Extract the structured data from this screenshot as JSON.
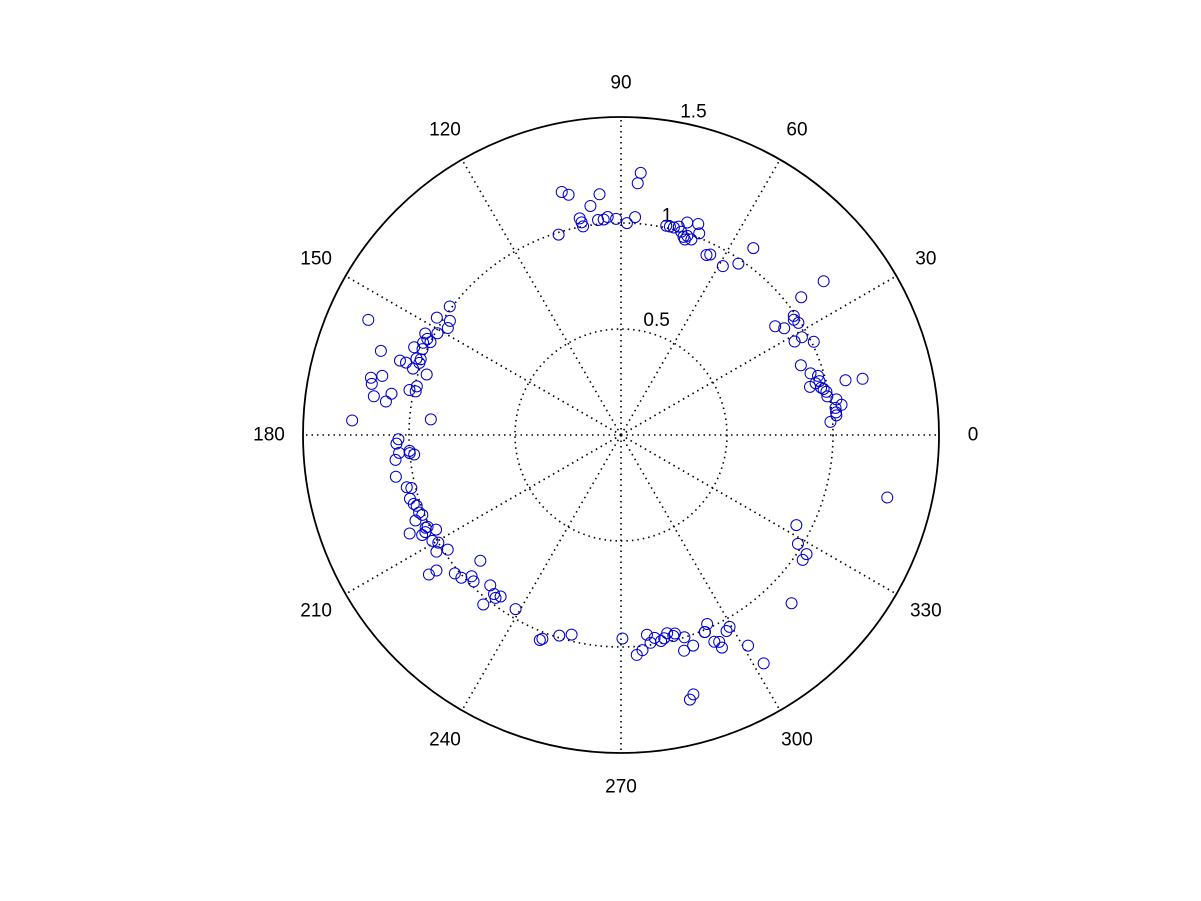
{
  "chart_data": {
    "type": "scatter",
    "coordinate_system": "polar",
    "angle_unit": "degrees",
    "rlim": [
      0,
      1.5
    ],
    "radial_ticks": [
      0.5,
      1,
      1.5
    ],
    "angle_ticks": [
      0,
      30,
      60,
      90,
      120,
      150,
      180,
      210,
      240,
      270,
      300,
      330
    ],
    "grid": true,
    "marker": "open-circle",
    "marker_color": "#0000cc",
    "series": [
      {
        "points": [
          [
            86.3,
            1.03
          ],
          [
            88.4,
            1.0
          ],
          [
            91.3,
            1.02
          ],
          [
            93.5,
            1.03
          ],
          [
            94.6,
            1.02
          ],
          [
            96.1,
            1.02
          ],
          [
            95.1,
            1.14
          ],
          [
            100.3,
            1.0
          ],
          [
            100.5,
            1.02
          ],
          [
            100.8,
            1.04
          ],
          [
            103.7,
            1.18
          ],
          [
            102.3,
            1.16
          ],
          [
            107.3,
            0.99
          ],
          [
            97.6,
            1.09
          ],
          [
            86.2,
            1.19
          ],
          [
            85.7,
            1.24
          ],
          [
            77.8,
            1.01
          ],
          [
            76.8,
            1.01
          ],
          [
            75.7,
            1.01
          ],
          [
            74.5,
            1.02
          ],
          [
            73.5,
            1.0
          ],
          [
            72.5,
            0.98
          ],
          [
            71.9,
            0.97
          ],
          [
            71.6,
            0.99
          ],
          [
            70.2,
            0.98
          ],
          [
            69.9,
            1.06
          ],
          [
            68.8,
            1.02
          ],
          [
            72.7,
            1.05
          ],
          [
            64.6,
            0.94
          ],
          [
            63.7,
            0.95
          ],
          [
            58.9,
            0.93
          ],
          [
            55.6,
            0.98
          ],
          [
            54.7,
            1.08
          ],
          [
            37.2,
            1.2
          ],
          [
            35.2,
            0.89
          ],
          [
            37.4,
            1.07
          ],
          [
            33.7,
            0.98
          ],
          [
            34.6,
            0.99
          ],
          [
            32.3,
            0.99
          ],
          [
            33.2,
            0.92
          ],
          [
            28.3,
            0.93
          ],
          [
            28.4,
            0.97
          ],
          [
            25.8,
            1.01
          ],
          [
            21.2,
            0.91
          ],
          [
            18.0,
            0.94
          ],
          [
            16.7,
            0.97
          ],
          [
            15.2,
            0.97
          ],
          [
            14.3,
            0.92
          ],
          [
            14.9,
            0.95
          ],
          [
            13.3,
            0.97
          ],
          [
            12.8,
            0.98
          ],
          [
            11.9,
            0.99
          ],
          [
            10.6,
            0.99
          ],
          [
            9.4,
            1.03
          ],
          [
            7.8,
            1.05
          ],
          [
            6.0,
            1.02
          ],
          [
            7.2,
            1.02
          ],
          [
            5.2,
            1.02
          ],
          [
            3.6,
            0.99
          ],
          [
            13.7,
            1.09
          ],
          [
            13.1,
            1.17
          ],
          [
            -13.2,
            1.29
          ],
          [
            -27.2,
            0.93
          ],
          [
            -31.6,
            0.98
          ],
          [
            -34.5,
            1.04
          ],
          [
            -32.7,
            1.04
          ],
          [
            -44.6,
            1.13
          ],
          [
            -58.0,
            1.27
          ],
          [
            -60.5,
            1.04
          ],
          [
            -58.9,
            1.16
          ],
          [
            -61.7,
            1.05
          ],
          [
            -65.5,
            0.98
          ],
          [
            -66.9,
            1.01
          ],
          [
            -64.6,
            1.11
          ],
          [
            -65.7,
            1.07
          ],
          [
            -64.6,
            1.08
          ],
          [
            -67.0,
            1.01
          ],
          [
            -73.7,
            1.06
          ],
          [
            -71.1,
            1.05
          ],
          [
            -72.6,
            1.0
          ],
          [
            -74.8,
            0.97
          ],
          [
            -75.4,
            0.98
          ],
          [
            -76.9,
            0.96
          ],
          [
            -79.0,
            0.99
          ],
          [
            -78.0,
            0.98
          ],
          [
            -80.6,
            0.97
          ],
          [
            -82.6,
            0.95
          ],
          [
            -81.9,
            0.99
          ],
          [
            -84.3,
            1.02
          ],
          [
            -85.9,
            1.04
          ],
          [
            -89.6,
            0.96
          ],
          [
            -103.9,
            0.97
          ],
          [
            -111.1,
            1.03
          ],
          [
            -111.6,
            1.04
          ],
          [
            -107.1,
            0.99
          ],
          [
            -74.4,
            1.27
          ],
          [
            -75.4,
            1.29
          ],
          [
            -121.2,
            0.96
          ],
          [
            -126.7,
            0.95
          ],
          [
            -127.6,
            0.97
          ],
          [
            -129.1,
            1.03
          ],
          [
            -128.6,
            0.96
          ],
          [
            -131.0,
            0.94
          ],
          [
            -135.2,
            0.98
          ],
          [
            -138.2,
            1.01
          ],
          [
            -140.2,
            1.02
          ],
          [
            -144.0,
            1.12
          ],
          [
            -136.6,
            0.97
          ],
          [
            -143.7,
            1.08
          ],
          [
            -138.2,
            0.89
          ],
          [
            -146.5,
            0.98
          ],
          [
            -147.7,
            1.03
          ],
          [
            -149.5,
            1.0
          ],
          [
            -150.7,
            1.02
          ],
          [
            -152.9,
            0.98
          ],
          [
            -155.0,
            1.1
          ],
          [
            -153.3,
            1.05
          ],
          [
            -153.6,
            1.03
          ],
          [
            -154.6,
            1.02
          ],
          [
            -154.6,
            1.01
          ],
          [
            -157.4,
            1.05
          ],
          [
            -158.1,
            1.01
          ],
          [
            -159.0,
            1.02
          ],
          [
            -160.9,
            1.02
          ],
          [
            -161.6,
            1.03
          ],
          [
            -163.2,
            1.04
          ],
          [
            -165.8,
            1.02
          ],
          [
            -166.3,
            1.04
          ],
          [
            -169.5,
            1.08
          ],
          [
            -173.7,
            1.07
          ],
          [
            -175.1,
            1.0
          ],
          [
            -178.9,
            1.05
          ],
          [
            -177.8,
            1.06
          ],
          [
            -175.4,
            1.05
          ],
          [
            176.9,
            1.27
          ],
          [
            -175.7,
            1.0
          ],
          [
            -174.6,
            0.98
          ],
          [
            175.3,
            0.9
          ],
          [
            171.9,
            1.12
          ],
          [
            171.1,
            1.18
          ],
          [
            169.8,
            1.1
          ],
          [
            168.0,
            1.02
          ],
          [
            168.0,
            0.99
          ],
          [
            166.6,
            0.99
          ],
          [
            162.7,
            0.96
          ],
          [
            162.3,
            1.03
          ],
          [
            161.4,
            1.1
          ],
          [
            161.4,
            1.07
          ],
          [
            160.7,
            1.2
          ],
          [
            159.5,
            1.03
          ],
          [
            159.3,
            1.01
          ],
          [
            160.3,
            1.01
          ],
          [
            156.6,
            1.02
          ],
          [
            155.0,
            1.03
          ],
          [
            153.6,
            1.02
          ],
          [
            152.6,
            1.04
          ],
          [
            151.0,
            0.99
          ],
          [
            148.3,
            0.96
          ],
          [
            146.3,
            0.97
          ],
          [
            147.5,
            1.03
          ],
          [
            167.1,
            1.21
          ],
          [
            168.4,
            1.2
          ],
          [
            166.1,
            1.16
          ],
          [
            155.5,
            1.31
          ],
          [
            143.1,
            1.01
          ],
          [
            157.0,
            1.06
          ],
          [
            154.0,
            1.0
          ]
        ]
      }
    ]
  }
}
